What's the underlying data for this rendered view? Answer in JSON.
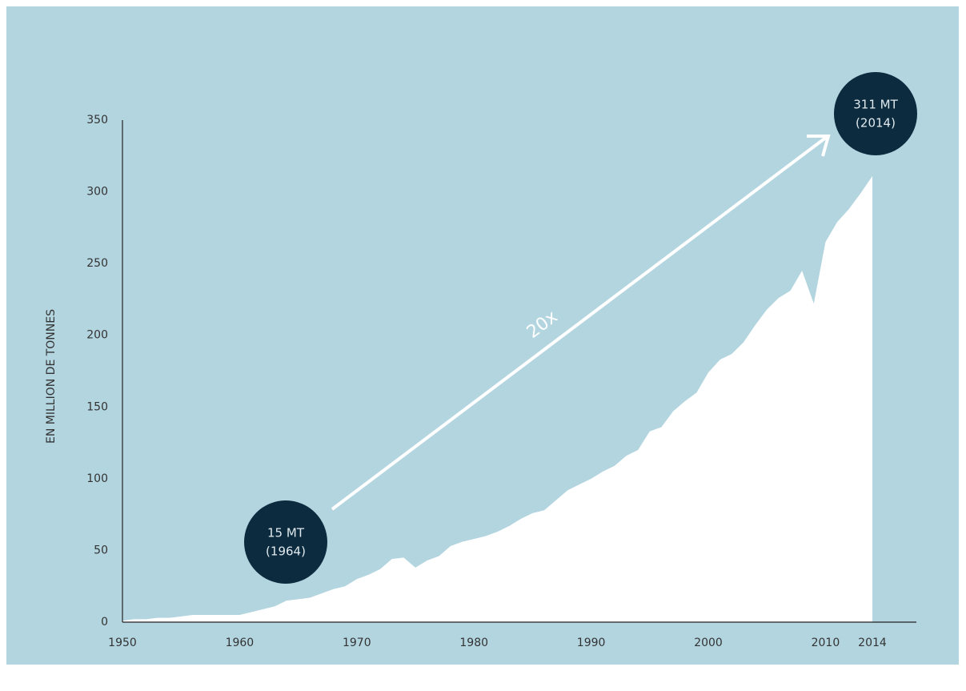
{
  "chart_data": {
    "type": "area",
    "y_label": "EN MILLION DE TONNES",
    "x": [
      1950,
      1951,
      1952,
      1953,
      1954,
      1955,
      1956,
      1957,
      1958,
      1959,
      1960,
      1961,
      1962,
      1963,
      1964,
      1965,
      1966,
      1967,
      1968,
      1969,
      1970,
      1971,
      1972,
      1973,
      1974,
      1975,
      1976,
      1977,
      1978,
      1979,
      1980,
      1981,
      1982,
      1983,
      1984,
      1985,
      1986,
      1987,
      1988,
      1989,
      1990,
      1991,
      1992,
      1993,
      1994,
      1995,
      1996,
      1997,
      1998,
      1999,
      2000,
      2001,
      2002,
      2003,
      2004,
      2005,
      2006,
      2007,
      2008,
      2009,
      2010,
      2011,
      2012,
      2013,
      2014
    ],
    "values": [
      1,
      2,
      2,
      3,
      3,
      4,
      5,
      5,
      5,
      5,
      5,
      7,
      9,
      11,
      15,
      16,
      17,
      20,
      23,
      25,
      30,
      33,
      37,
      44,
      45,
      38,
      43,
      46,
      53,
      56,
      58,
      60,
      63,
      67,
      72,
      76,
      78,
      85,
      92,
      96,
      100,
      105,
      109,
      116,
      120,
      133,
      136,
      147,
      154,
      160,
      174,
      183,
      187,
      195,
      207,
      218,
      226,
      231,
      245,
      222,
      265,
      279,
      288,
      299,
      311
    ],
    "color": "#ffffff",
    "background": "#b3d5e0",
    "xlim": [
      1950,
      2014
    ],
    "xticks": [
      1950,
      1960,
      1970,
      1980,
      1990,
      2000,
      2010,
      2014
    ],
    "ylim": [
      0,
      350
    ],
    "yticks": [
      0,
      50,
      100,
      150,
      200,
      250,
      300,
      350
    ],
    "grid": false,
    "annotations": [
      {
        "lines": [
          "15 MT",
          "(1964)"
        ]
      },
      {
        "lines": [
          "311 MT",
          "(2014)"
        ]
      }
    ],
    "arrow_label": "20x"
  }
}
